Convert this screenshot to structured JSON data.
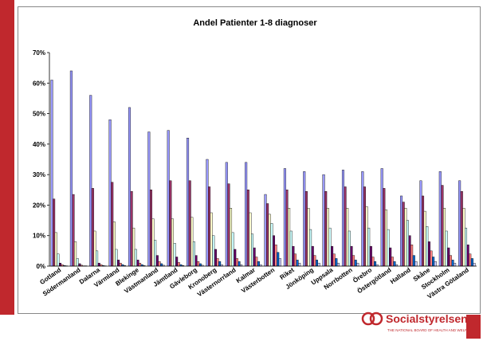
{
  "chart_data": {
    "type": "bar",
    "title": "Andel Patienter 1-8 diagnoser",
    "categories": [
      "Gotland",
      "Södermanland",
      "Dalarna",
      "Värmland",
      "Blekinge",
      "Västmanland",
      "Jämtland",
      "Gävleborg",
      "Kronoberg",
      "Västernorrland",
      "Kalmar",
      "Västerbotten",
      "Riket",
      "Jönköping",
      "Uppsala",
      "Norrbotten",
      "Örebro",
      "Östergötland",
      "Halland",
      "Skåne",
      "Stockholm",
      "Västra Götaland"
    ],
    "series": [
      {
        "color": "#9999ff",
        "values": [
          61,
          64,
          56,
          48,
          52,
          44,
          44.5,
          42,
          35,
          34,
          34,
          23.5,
          32,
          31,
          30,
          31.5,
          31,
          32,
          23,
          28,
          31,
          28
        ]
      },
      {
        "color": "#993366",
        "values": [
          22,
          23.5,
          25.5,
          27.5,
          24.5,
          25,
          28,
          28,
          26,
          27,
          25,
          20.5,
          25,
          24.5,
          24.5,
          26,
          26,
          25.5,
          21,
          23,
          26.5,
          24.5
        ]
      },
      {
        "color": "#ffffcc",
        "values": [
          11,
          8,
          11.5,
          14.5,
          12.5,
          15.5,
          15.5,
          16,
          17.5,
          19,
          17.5,
          17,
          19,
          19,
          19,
          19,
          19.5,
          18.5,
          19,
          18,
          19,
          19
        ]
      },
      {
        "color": "#ccffff",
        "values": [
          4,
          2.5,
          5,
          5.5,
          5.5,
          8.5,
          7.5,
          8,
          10,
          11,
          10.5,
          14,
          11.5,
          12,
          12.5,
          11.5,
          12.5,
          12,
          15,
          13,
          11.5,
          12.5
        ]
      },
      {
        "color": "#660066",
        "values": [
          1,
          0.8,
          1,
          2,
          2,
          3.5,
          3,
          3.5,
          5.5,
          5.5,
          6,
          10,
          6.5,
          6.5,
          6.5,
          6.5,
          6.5,
          6,
          10,
          8,
          6,
          7
        ]
      },
      {
        "color": "#ff8080",
        "values": [
          0.5,
          0.3,
          0.5,
          1,
          1,
          1.5,
          1.2,
          1.5,
          2.5,
          2.5,
          3,
          7,
          4,
          3.5,
          4,
          3.5,
          3,
          3,
          7,
          5,
          3.5,
          4
        ]
      },
      {
        "color": "#0066cc",
        "values": [
          0.2,
          0.1,
          0.2,
          0.5,
          0.5,
          0.8,
          0.5,
          0.8,
          1.5,
          1.5,
          1.5,
          4.5,
          2,
          2,
          2.5,
          2,
          1.5,
          1.5,
          3.5,
          3,
          2,
          2.5
        ]
      },
      {
        "color": "#ccccff",
        "values": [
          0.1,
          0.1,
          0.1,
          0.2,
          0.2,
          0.3,
          0.2,
          0.3,
          0.5,
          0.5,
          0.5,
          2.5,
          1,
          1,
          1,
          1,
          0.5,
          0.5,
          1.5,
          1.5,
          1,
          1
        ]
      }
    ],
    "ylim": [
      0,
      70
    ],
    "yticks": [
      {
        "value": 0,
        "label": "0%"
      },
      {
        "value": 10,
        "label": "10%"
      },
      {
        "value": 20,
        "label": "20%"
      },
      {
        "value": 30,
        "label": "30%"
      },
      {
        "value": 40,
        "label": "40%"
      },
      {
        "value": 50,
        "label": "50%"
      },
      {
        "value": 60,
        "label": "60%"
      },
      {
        "value": 70,
        "label": "70%"
      }
    ],
    "grid": false
  },
  "logo": {
    "name": "Socialstyrelsen",
    "tagline": "THE NATIONAL BOARD OF HEALTH AND WELFARE"
  }
}
